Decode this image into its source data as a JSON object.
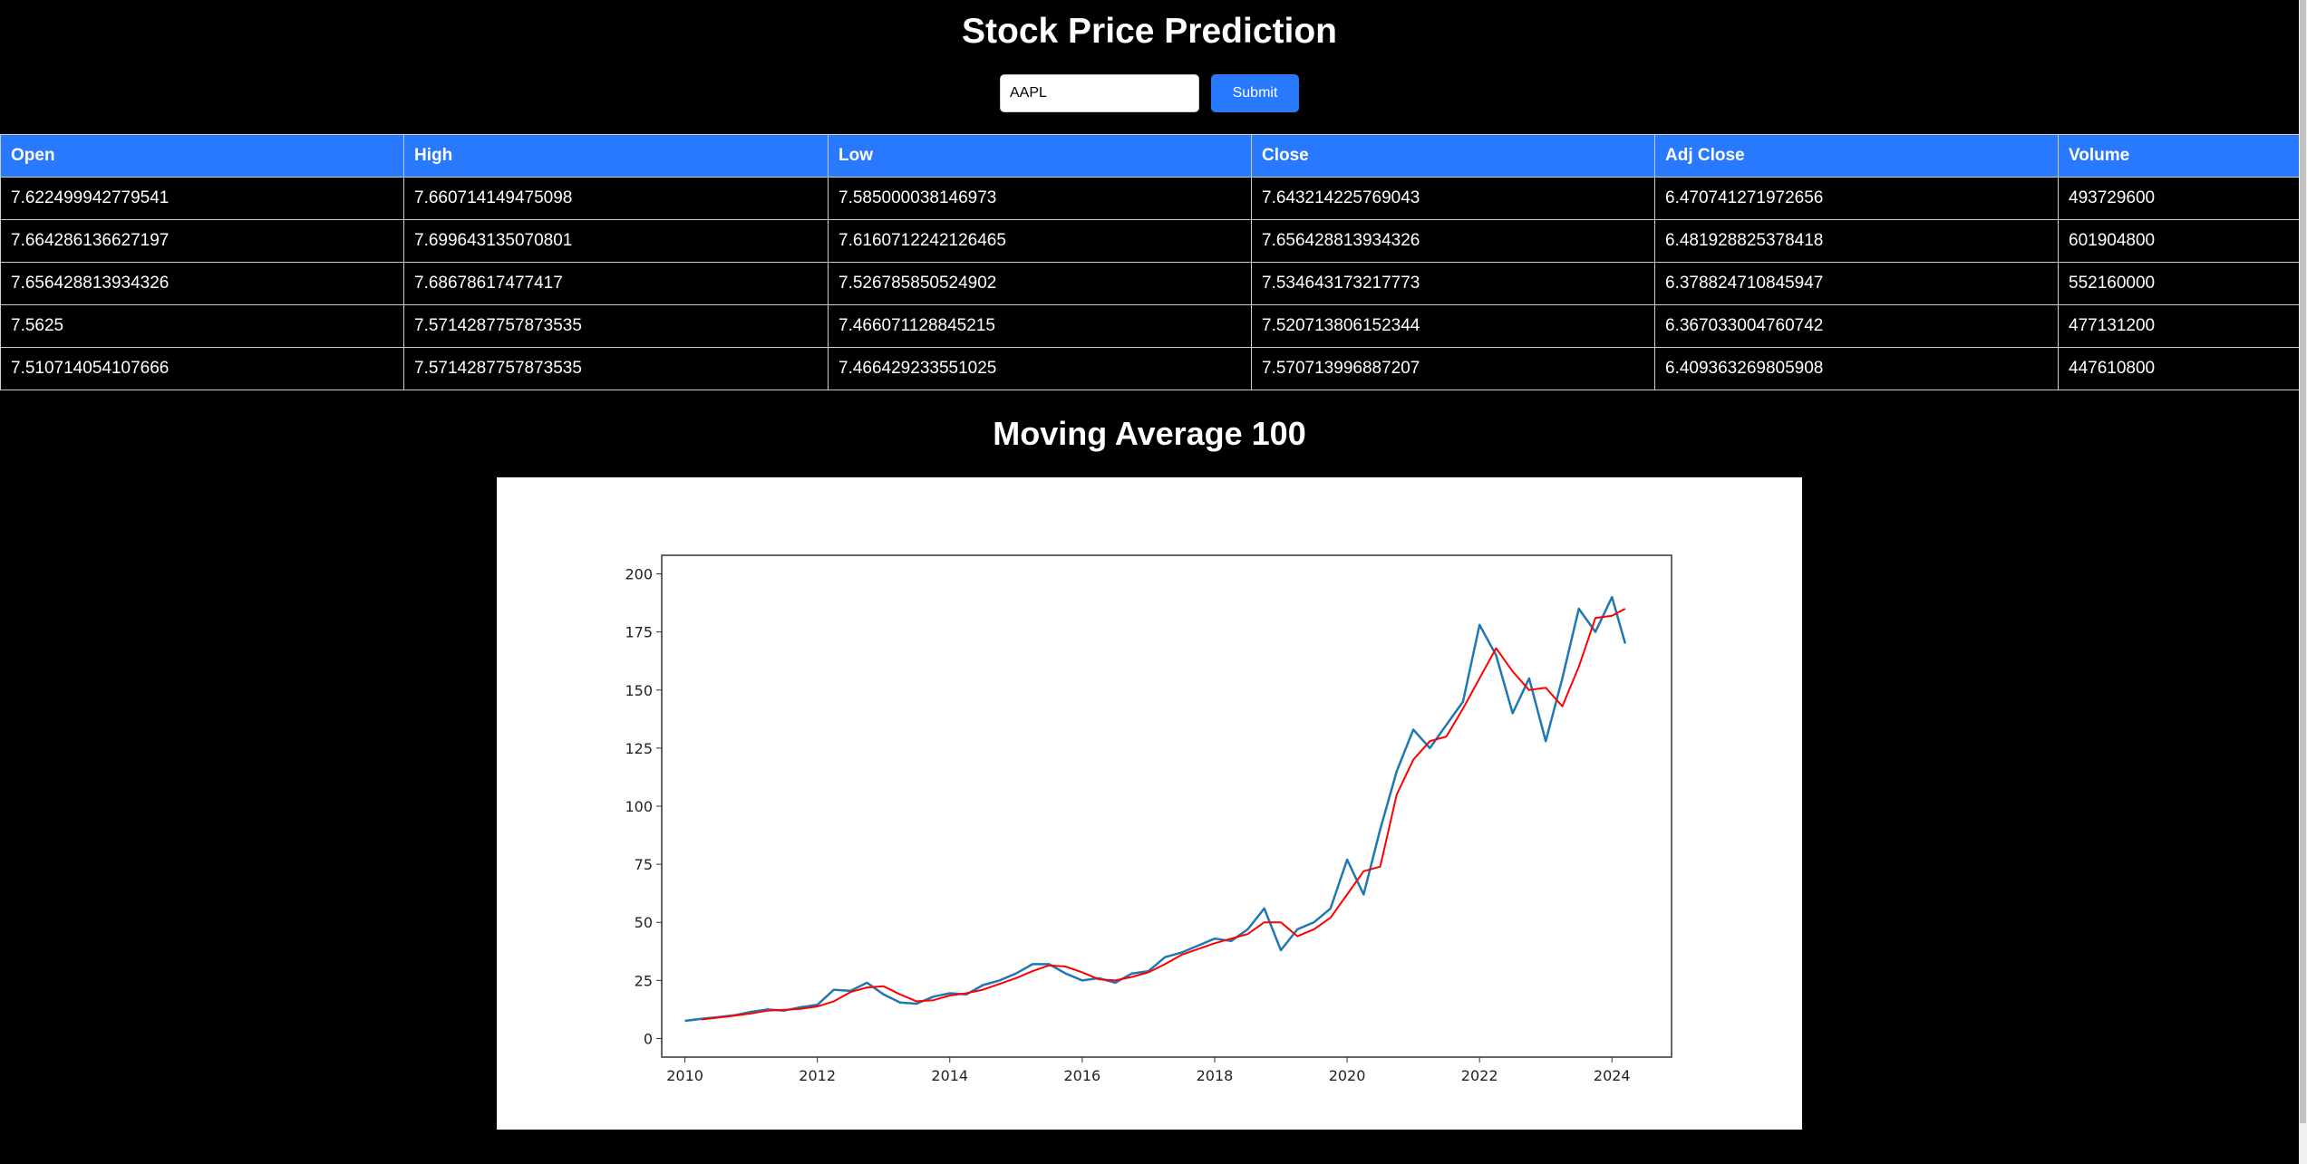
{
  "header": {
    "title": "Stock Price Prediction"
  },
  "form": {
    "ticker_value": "AAPL",
    "submit_label": "Submit"
  },
  "table": {
    "columns": [
      "Open",
      "High",
      "Low",
      "Close",
      "Adj Close",
      "Volume"
    ],
    "rows": [
      [
        "7.622499942779541",
        "7.660714149475098",
        "7.585000038146973",
        "7.643214225769043",
        "6.470741271972656",
        "493729600"
      ],
      [
        "7.664286136627197",
        "7.699643135070801",
        "7.6160712242126465",
        "7.656428813934326",
        "6.481928825378418",
        "601904800"
      ],
      [
        "7.656428813934326",
        "7.68678617477417",
        "7.526785850524902",
        "7.534643173217773",
        "6.378824710845947",
        "552160000"
      ],
      [
        "7.5625",
        "7.5714287757873535",
        "7.466071128845215",
        "7.520713806152344",
        "6.367033004760742",
        "477131200"
      ],
      [
        "7.510714054107666",
        "7.5714287757873535",
        "7.466429233551025",
        "7.570713996887207",
        "6.409363269805908",
        "447610800"
      ]
    ]
  },
  "chart_section": {
    "title": "Moving Average 100"
  },
  "chart_data": {
    "type": "line",
    "xlim": [
      2009.65,
      2024.9
    ],
    "ylim": [
      -8,
      208
    ],
    "x_ticks": [
      "2010",
      "2012",
      "2014",
      "2016",
      "2018",
      "2020",
      "2022",
      "2024"
    ],
    "y_ticks": [
      "0",
      "25",
      "50",
      "75",
      "100",
      "125",
      "150",
      "175",
      "200"
    ],
    "grid": false,
    "x": [
      2010.0,
      2010.25,
      2010.5,
      2010.75,
      2011.0,
      2011.25,
      2011.5,
      2011.75,
      2012.0,
      2012.25,
      2012.5,
      2012.75,
      2013.0,
      2013.25,
      2013.5,
      2013.75,
      2014.0,
      2014.25,
      2014.5,
      2014.75,
      2015.0,
      2015.25,
      2015.5,
      2015.75,
      2016.0,
      2016.25,
      2016.5,
      2016.75,
      2017.0,
      2017.25,
      2017.5,
      2017.75,
      2018.0,
      2018.25,
      2018.5,
      2018.75,
      2019.0,
      2019.25,
      2019.5,
      2019.75,
      2020.0,
      2020.25,
      2020.5,
      2020.75,
      2021.0,
      2021.25,
      2021.5,
      2021.75,
      2022.0,
      2022.25,
      2022.5,
      2022.75,
      2023.0,
      2023.25,
      2023.5,
      2023.75,
      2024.0,
      2024.2
    ],
    "series": [
      {
        "color": "#1f77b4",
        "values": [
          7.6,
          8.5,
          9.2,
          10,
          11.5,
          12.5,
          12,
          13.5,
          14.5,
          21,
          20.5,
          24,
          19,
          15.5,
          15,
          18,
          19.5,
          19,
          23,
          25,
          28,
          32,
          32,
          28,
          25,
          26,
          24,
          28,
          29,
          35,
          37,
          40,
          43,
          42,
          47,
          56,
          38,
          47,
          50,
          56,
          77,
          62,
          90,
          115,
          133,
          125,
          135,
          145,
          178,
          165,
          140,
          155,
          128,
          155,
          185,
          175,
          190,
          170
        ]
      },
      {
        "color": "#ff0000",
        "values": [
          null,
          8.2,
          9,
          9.8,
          10.8,
          12,
          12.4,
          12.8,
          13.8,
          16,
          20,
          22,
          22.5,
          19,
          16,
          16.5,
          18.5,
          19.5,
          21,
          23.5,
          26,
          29,
          31.5,
          31,
          28.5,
          25.5,
          25,
          26.5,
          28.5,
          32,
          36,
          38.5,
          41,
          43,
          45,
          50,
          50,
          44,
          47,
          52,
          62,
          72,
          74,
          105,
          120,
          128,
          130,
          142,
          155,
          168,
          158,
          150,
          151,
          143,
          160,
          181,
          182,
          185
        ]
      }
    ]
  }
}
